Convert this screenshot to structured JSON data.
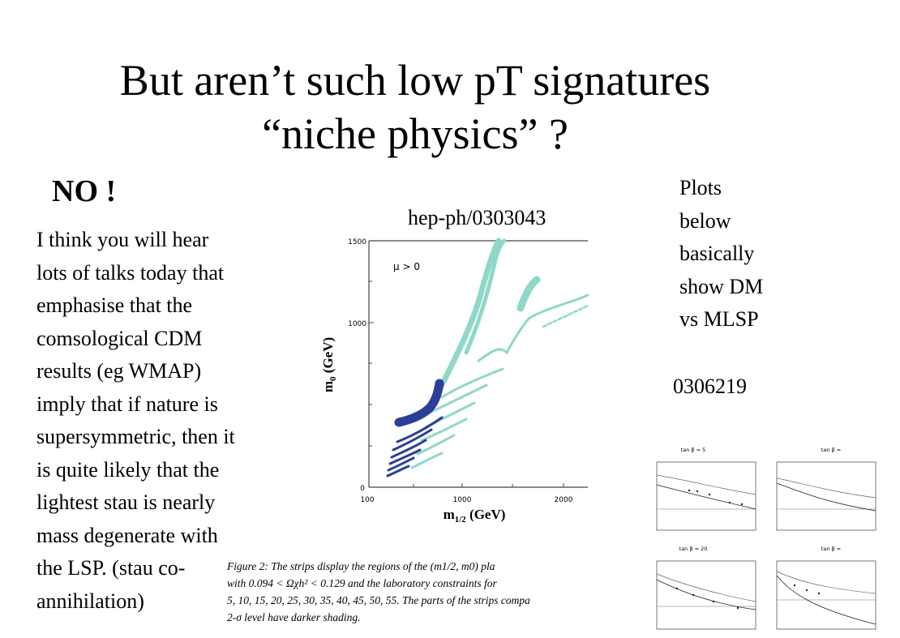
{
  "slide": {
    "title_line1": "But aren’t such low pT signatures",
    "title_line2": "“niche physics” ?",
    "no": "NO !",
    "body_lines": [
      "I think you will hear",
      "lots of talks today that",
      "emphasise that the",
      "comsological CDM",
      "results (eg WMAP)",
      "imply that if nature is",
      "supersymmetric, then it",
      "is quite likely that the",
      "lightest stau is nearly",
      "mass  degenerate with",
      "the LSP. (stau co-",
      "annihilation)"
    ],
    "ref1": "hep-ph/0303043",
    "note_lines": [
      "Plots",
      "below",
      "basically",
      "show DM",
      "vs MLSP"
    ],
    "ref2": "0306219"
  },
  "figure": {
    "mu_label": "μ > 0",
    "ylabel": "m",
    "ylabel_sub": "0",
    "ylabel_unit": " (GeV)",
    "xlabel": "m",
    "xlabel_sub": "1/2",
    "xlabel_unit": " (GeV)",
    "y_ticks": [
      "1500",
      "1000",
      "0"
    ],
    "x_ticks": [
      "100",
      "1000",
      "2000"
    ],
    "colors": {
      "light": "#8fd8c8",
      "dark": "#2c3e98"
    },
    "caption_lines": [
      "Figure 2:  The strips display the regions of the (m1/2, m0)  pla",
      "with 0.094  <  Ωχh²  <  0.129  and the laboratory constraints for",
      "5, 10, 15, 20, 25, 30, 35, 40, 45, 50, 55.  The parts of the strips compa",
      "2-σ level have darker shading."
    ]
  },
  "mini_plots": [
    {
      "title": "tan β = 5"
    },
    {
      "title": "tan β ="
    },
    {
      "title": "tan β = 20"
    },
    {
      "title": "tan β ="
    }
  ]
}
